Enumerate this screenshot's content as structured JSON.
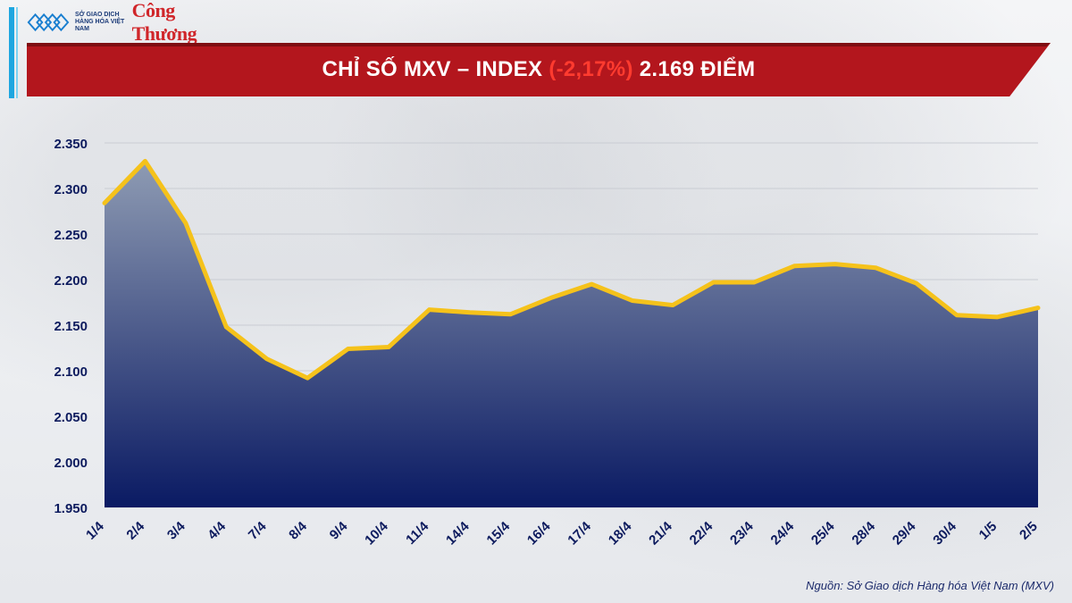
{
  "logo": {
    "org_text": "SỞ GIAO DỊCH HÀNG HÓA VIỆT NAM",
    "brand_text": "Công Thương"
  },
  "title": {
    "main": "CHỈ SỐ MXV – INDEX",
    "change": "(-2,17%)",
    "value": "2.169 ĐIỂM"
  },
  "source": "Nguồn: Sở Giao dịch Hàng hóa Việt Nam (MXV)",
  "colors": {
    "banner": "#b3161d",
    "change_text": "#ff3b2f",
    "line": "#f5c21b",
    "area_top": "#8e9bb3",
    "area_bottom": "#0a1a63",
    "axis_text": "#0d1b5e"
  },
  "chart_data": {
    "type": "area",
    "title": "CHỈ SỐ MXV – INDEX (-2,17%) 2.169 ĐIỂM",
    "categories": [
      "1/4",
      "2/4",
      "3/4",
      "4/4",
      "7/4",
      "8/4",
      "9/4",
      "10/4",
      "11/4",
      "14/4",
      "15/4",
      "16/4",
      "17/4",
      "18/4",
      "21/4",
      "22/4",
      "23/4",
      "24/4",
      "25/4",
      "28/4",
      "29/4",
      "30/4",
      "1/5",
      "2/5"
    ],
    "series": [
      {
        "values": [
          2284,
          2330,
          2262,
          2148,
          2113,
          2092,
          2124,
          2126,
          2167,
          2164,
          2162,
          2180,
          2195,
          2177,
          2172,
          2197,
          2197,
          2215,
          2217,
          2213,
          2196,
          2161,
          2159,
          2169
        ]
      }
    ],
    "ylim": [
      1950,
      2350
    ],
    "yticks": [
      1950,
      2000,
      2050,
      2100,
      2150,
      2200,
      2250,
      2300,
      2350
    ],
    "ytick_labels": [
      "1.950",
      "2.000",
      "2.050",
      "2.100",
      "2.150",
      "2.200",
      "2.250",
      "2.300",
      "2.350"
    ],
    "grid": true,
    "legend": "none"
  }
}
